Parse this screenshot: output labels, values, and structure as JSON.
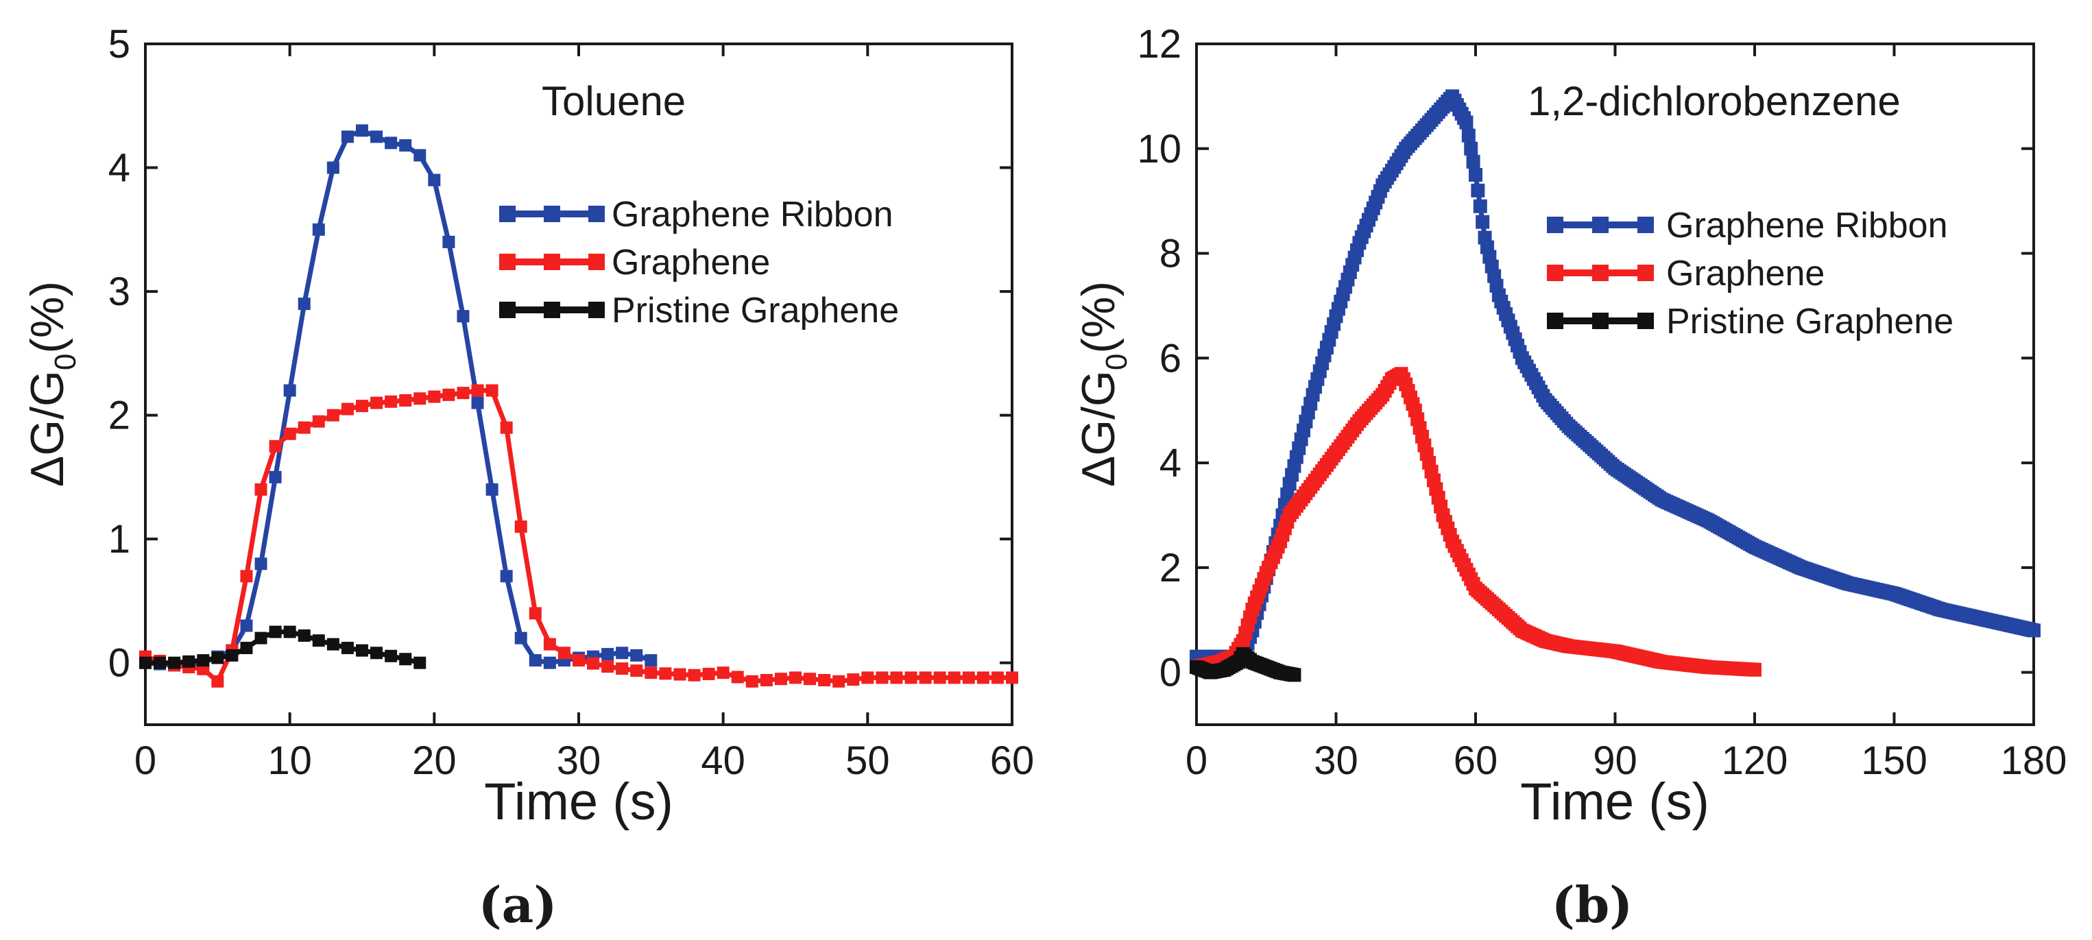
{
  "colors": {
    "graphene_ribbon": "#2545a3",
    "graphene": "#f2201e",
    "pristine_graphene": "#111111",
    "axis": "#1a1a1a"
  },
  "chart_data": [
    {
      "type": "line",
      "panel_label": "(a)",
      "title": "Toluene",
      "xlabel": "Time (s)",
      "ylabel_main": "ΔG/G",
      "ylabel_subscript": "0",
      "ylabel_suffix": "(%)",
      "xlim": [
        0,
        60
      ],
      "ylim": [
        -0.5,
        5
      ],
      "xticks": [
        0,
        10,
        20,
        30,
        40,
        50,
        60
      ],
      "yticks": [
        0,
        1,
        2,
        3,
        4,
        5
      ],
      "legend": [
        "Graphene Ribbon",
        "Graphene",
        "Pristine Graphene"
      ],
      "legend_position": "upper-right",
      "series": [
        {
          "name": "Graphene Ribbon",
          "color": "#2545a3",
          "x": [
            0,
            2,
            4,
            5,
            6,
            7,
            8,
            9,
            10,
            11,
            12,
            13,
            14,
            15,
            16,
            17,
            18,
            19,
            20,
            21,
            22,
            23,
            24,
            25,
            26,
            27,
            28,
            29,
            30,
            31,
            32,
            33,
            34,
            35
          ],
          "y": [
            0,
            -0.02,
            0,
            0.05,
            0.1,
            0.3,
            0.8,
            1.5,
            2.2,
            2.9,
            3.5,
            4.0,
            4.25,
            4.3,
            4.25,
            4.2,
            4.18,
            4.1,
            3.9,
            3.4,
            2.8,
            2.1,
            1.4,
            0.7,
            0.2,
            0.02,
            0.0,
            0.02,
            0.04,
            0.05,
            0.07,
            0.08,
            0.06,
            0.02
          ]
        },
        {
          "name": "Graphene",
          "color": "#f2201e",
          "x": [
            0,
            2,
            4,
            5,
            6,
            7,
            8,
            9,
            10,
            12,
            14,
            16,
            18,
            20,
            22,
            23,
            24,
            25,
            26,
            27,
            28,
            29,
            30,
            32,
            35,
            38,
            40,
            42,
            45,
            48,
            50,
            55,
            60
          ],
          "y": [
            0.05,
            -0.02,
            -0.05,
            -0.15,
            0.1,
            0.7,
            1.4,
            1.75,
            1.85,
            1.95,
            2.05,
            2.1,
            2.12,
            2.15,
            2.18,
            2.2,
            2.2,
            1.9,
            1.1,
            0.4,
            0.15,
            0.08,
            0.02,
            -0.03,
            -0.08,
            -0.1,
            -0.08,
            -0.15,
            -0.12,
            -0.15,
            -0.12,
            -0.12,
            -0.12
          ]
        },
        {
          "name": "Pristine Graphene",
          "color": "#111111",
          "x": [
            0,
            2,
            4,
            6,
            7,
            8,
            9,
            10,
            11,
            12,
            13,
            14,
            16,
            18,
            19
          ],
          "y": [
            0,
            0.0,
            0.02,
            0.06,
            0.12,
            0.2,
            0.25,
            0.25,
            0.22,
            0.18,
            0.15,
            0.12,
            0.08,
            0.03,
            0.0
          ]
        }
      ]
    },
    {
      "type": "line",
      "panel_label": "(b)",
      "title": "1,2-dichlorobenzene",
      "xlabel": "Time (s)",
      "ylabel_main": "ΔG/G",
      "ylabel_subscript": "0",
      "ylabel_suffix": "(%)",
      "xlim": [
        0,
        180
      ],
      "ylim": [
        -1,
        12
      ],
      "xticks": [
        0,
        30,
        60,
        90,
        120,
        150,
        180
      ],
      "yticks": [
        0,
        2,
        4,
        6,
        8,
        10,
        12
      ],
      "legend": [
        "Graphene Ribbon",
        "Graphene",
        "Pristine Graphene"
      ],
      "legend_position": "upper-right",
      "series": [
        {
          "name": "Graphene Ribbon",
          "color": "#2545a3",
          "x": [
            0,
            5,
            10,
            12,
            15,
            18,
            20,
            25,
            30,
            35,
            40,
            45,
            50,
            55,
            58,
            60,
            62,
            65,
            70,
            75,
            80,
            90,
            100,
            110,
            120,
            130,
            140,
            150,
            160,
            170,
            180
          ],
          "y": [
            0.3,
            0.3,
            0.3,
            0.8,
            1.8,
            2.8,
            3.6,
            5.3,
            6.8,
            8.2,
            9.3,
            10.0,
            10.5,
            11.0,
            10.5,
            9.5,
            8.3,
            7.2,
            6.0,
            5.2,
            4.7,
            3.9,
            3.3,
            2.9,
            2.4,
            2.0,
            1.7,
            1.5,
            1.2,
            1.0,
            0.8
          ]
        },
        {
          "name": "Graphene",
          "color": "#f2201e",
          "x": [
            0,
            5,
            8,
            10,
            12,
            15,
            18,
            20,
            25,
            30,
            35,
            40,
            42,
            44,
            45,
            47,
            50,
            53,
            55,
            60,
            65,
            70,
            75,
            80,
            90,
            100,
            110,
            120
          ],
          "y": [
            0.1,
            0.2,
            0.3,
            0.6,
            1.2,
            1.9,
            2.5,
            3.0,
            3.6,
            4.2,
            4.8,
            5.3,
            5.6,
            5.7,
            5.5,
            5.0,
            4.0,
            3.0,
            2.5,
            1.6,
            1.2,
            0.8,
            0.6,
            0.5,
            0.4,
            0.2,
            0.1,
            0.05
          ]
        },
        {
          "name": "Pristine Graphene",
          "color": "#111111",
          "x": [
            0,
            3,
            6,
            9,
            10,
            12,
            15,
            18,
            21
          ],
          "y": [
            0.1,
            0.0,
            0.05,
            0.2,
            0.35,
            0.2,
            0.1,
            0.0,
            -0.05
          ]
        }
      ]
    }
  ]
}
